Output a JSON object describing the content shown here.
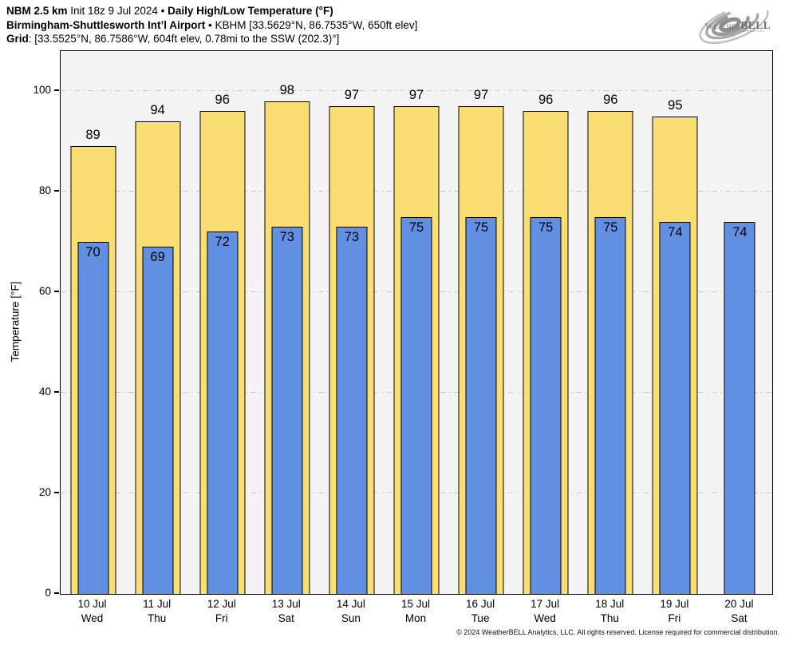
{
  "header": {
    "line1": {
      "model": "NBM 2.5 km",
      "init": " Init 18z 9 Jul 2024 • ",
      "title": "Daily High/Low Temperature (°F)"
    },
    "line2": {
      "station": "Birmingham-Shuttlesworth Int’l Airport",
      "details": " • KBHM [33.5629°N, 86.7535°W, 650ft elev]"
    },
    "line3": {
      "label": "Grid",
      "details": ": [33.5525°N, 86.7586°W, 604ft elev, 0.78mi to the SSW (202.3)°]"
    }
  },
  "logo": {
    "weather": "Weather",
    "bell": "BELL",
    "sub": "Analytics LLC"
  },
  "chart_data": {
    "type": "bar",
    "title": "Daily High/Low Temperature (°F)",
    "xlabel": "",
    "ylabel": "Temperature [°F]",
    "ylim": [
      0,
      108
    ],
    "yticks": [
      0,
      20,
      40,
      60,
      80,
      100
    ],
    "grid": "horizontal dash-dot gridlines at y ticks",
    "legend_position": "none",
    "plot_bg": "#f4f4f4",
    "gridline_color": "#c9c9c9",
    "categories": [
      {
        "date": "10 Jul",
        "day": "Wed"
      },
      {
        "date": "11 Jul",
        "day": "Thu"
      },
      {
        "date": "12 Jul",
        "day": "Fri"
      },
      {
        "date": "13 Jul",
        "day": "Sat"
      },
      {
        "date": "14 Jul",
        "day": "Sun"
      },
      {
        "date": "15 Jul",
        "day": "Mon"
      },
      {
        "date": "16 Jul",
        "day": "Tue"
      },
      {
        "date": "17 Jul",
        "day": "Wed"
      },
      {
        "date": "18 Jul",
        "day": "Thu"
      },
      {
        "date": "19 Jul",
        "day": "Fri"
      },
      {
        "date": "20 Jul",
        "day": "Sat"
      }
    ],
    "series": [
      {
        "name": "Daily High",
        "color": "#fade73",
        "values": [
          89,
          94,
          96,
          98,
          97,
          97,
          97,
          96,
          96,
          95,
          null
        ]
      },
      {
        "name": "Daily Low",
        "color": "#6190e2",
        "values": [
          70,
          69,
          72,
          73,
          73,
          75,
          75,
          75,
          75,
          74,
          74
        ]
      }
    ]
  },
  "footer": {
    "copyright": "© 2024 WeatherBELL Analytics, LLC. All rights reserved. License required for commercial distribution."
  }
}
